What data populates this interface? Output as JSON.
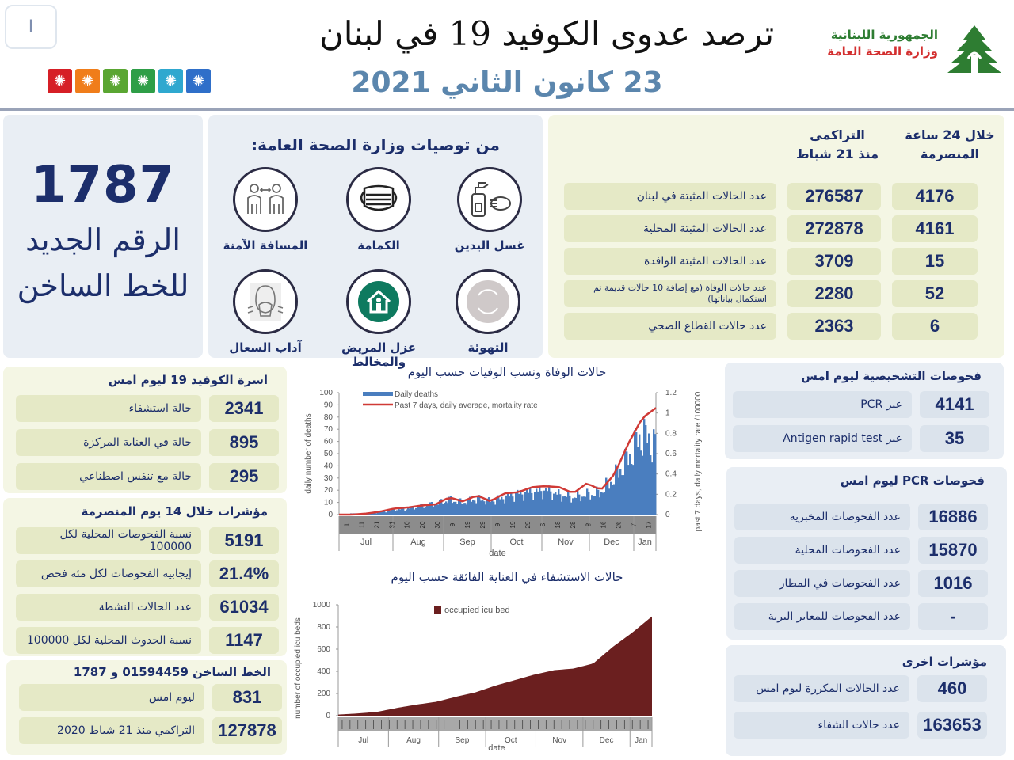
{
  "header": {
    "corner_button_label": "I",
    "title": "ترصد عدوى الكوفيد 19 في لبنان",
    "date": "23 كانون الثاني 2021",
    "ministry_line1": "الجمهورية اللبنانية",
    "ministry_line2": "وزارة الصحة العامة",
    "logo_icon": "cedar-tree-icon",
    "flag_icons": [
      {
        "name": "virus-icon",
        "color": "#d61f26"
      },
      {
        "name": "virus-icon",
        "color": "#f07d1a"
      },
      {
        "name": "virus-icon",
        "color": "#5aa632"
      },
      {
        "name": "virus-icon",
        "color": "#2e9e47"
      },
      {
        "name": "virus-icon",
        "color": "#2fa8cf"
      },
      {
        "name": "virus-icon",
        "color": "#2f6fc9"
      }
    ]
  },
  "hotline": {
    "number": "1787",
    "line1": "الرقم الجديد",
    "line2": "للخط الساخن"
  },
  "recommendations": {
    "title": "من توصيات وزارة الصحة العامة:",
    "items": [
      {
        "label": "غسل اليدين",
        "icon": "hand-sanitizer-icon"
      },
      {
        "label": "الكمامة",
        "icon": "face-mask-icon"
      },
      {
        "label": "المسافة الآمنة",
        "icon": "social-distance-icon"
      },
      {
        "label": "التهوئة",
        "icon": "ventilation-icon"
      },
      {
        "label": "عزل المريض والمخالط",
        "icon": "home-isolation-icon"
      },
      {
        "label": "آداب السعال",
        "icon": "cough-etiquette-icon"
      }
    ]
  },
  "stats": {
    "col_24h": "خلال 24 ساعة\nالمنصرمة",
    "col_24h_l1": "خلال 24 ساعة",
    "col_24h_l2": "المنصرمة",
    "col_cum_l1": "التراكمي",
    "col_cum_l2": "منذ 21 شباط",
    "rows": [
      {
        "h24": "4176",
        "cum": "276587",
        "label": "عدد الحالات المثبتة في لبنان"
      },
      {
        "h24": "4161",
        "cum": "272878",
        "label": "عدد الحالات المثبتة المحلية"
      },
      {
        "h24": "15",
        "cum": "3709",
        "label": "عدد الحالات المثبتة الوافدة"
      },
      {
        "h24": "52",
        "cum": "2280",
        "label": "عدد حالات الوفاة (مع إضافة 10 حالات قديمة تم استكمال بياناتها)"
      },
      {
        "h24": "6",
        "cum": "2363",
        "label": "عدد حالات القطاع الصحي"
      }
    ]
  },
  "beds": {
    "title": "اسرة الكوفيد 19 ليوم امس",
    "rows": [
      {
        "value": "2341",
        "label": "حالة استشفاء"
      },
      {
        "value": "895",
        "label": "حالة في العناية المركزة"
      },
      {
        "value": "295",
        "label": "حالة مع تنفس اصطناعي"
      }
    ]
  },
  "indicators14": {
    "title": "مؤشرات خلال 14 يوم المنصرمة",
    "rows": [
      {
        "value": "5191",
        "label": "نسبة الفحوصات  المحلية لكل 100000"
      },
      {
        "value": "21.4%",
        "label": "إيجابية الفحوصات لكل مئة فحص"
      },
      {
        "value": "61034",
        "label": "عدد الحالات النشطة"
      },
      {
        "value": "1147",
        "label": "نسبة الحدوث المحلية لكل 100000"
      }
    ]
  },
  "hotline_calls": {
    "title": "الخط الساخن 01594459 و 1787",
    "rows": [
      {
        "value": "831",
        "label": "ليوم امس"
      },
      {
        "value": "127878",
        "label": "التراكمي منذ 21 شباط 2020"
      }
    ]
  },
  "diagnostic": {
    "title": "فحوصات التشخيصية ليوم امس",
    "rows": [
      {
        "value": "4141",
        "label": "عبر PCR"
      },
      {
        "value": "35",
        "label": "عبر Antigen rapid test"
      }
    ]
  },
  "pcr": {
    "title": "فحوصات  PCR ليوم امس",
    "rows": [
      {
        "value": "16886",
        "label": "عدد الفحوصات المخبرية"
      },
      {
        "value": "15870",
        "label": "عدد الفحوصات المحلية"
      },
      {
        "value": "1016",
        "label": "عدد الفحوصات في المطار"
      },
      {
        "value": "-",
        "label": "عدد الفحوصات للمعابر البرية"
      }
    ]
  },
  "other": {
    "title": "مؤشرات اخرى",
    "rows": [
      {
        "value": "460",
        "label": "عدد الحالات المكررة  ليوم امس"
      },
      {
        "value": "163653",
        "label": "عدد حالات الشفاء"
      }
    ]
  },
  "chart_data": [
    {
      "type": "bar",
      "title": "حالات الوفاة ونسب الوفيات حسب اليوم",
      "xlabel": "date",
      "ylabel": "daily number of deaths",
      "y2label": "past 7 days, daily mortality rate /100000",
      "ylim": [
        0,
        100
      ],
      "y2lim": [
        0,
        1.2
      ],
      "yticks": [
        0,
        10,
        20,
        30,
        40,
        50,
        60,
        70,
        80,
        90,
        100
      ],
      "y2ticks": [
        0,
        0.2,
        0.4,
        0.6,
        0.8,
        1,
        1.2
      ],
      "month_labels": [
        "Jul",
        "Aug",
        "Sep",
        "Oct",
        "Nov",
        "Dec",
        "Jan"
      ],
      "day_ticks": [
        "1",
        "11",
        "21",
        "31",
        "10",
        "20",
        "30",
        "9",
        "19",
        "29",
        "9",
        "19",
        "29",
        "8",
        "18",
        "28",
        "8",
        "16",
        "26",
        "7",
        "17"
      ],
      "legend": [
        "Daily deaths",
        "Past 7 days, daily average, mortality rate"
      ],
      "series": [
        {
          "name": "Daily deaths",
          "kind": "bar",
          "color": "#4a7ebf",
          "x": [
            "Jul 1",
            "Jul 11",
            "Jul 21",
            "Jul 31",
            "Aug 10",
            "Aug 20",
            "Aug 30",
            "Sep 9",
            "Sep 19",
            "Sep 29",
            "Oct 9",
            "Oct 19",
            "Oct 29",
            "Nov 8",
            "Nov 18",
            "Nov 28",
            "Dec 8",
            "Dec 18",
            "Dec 28",
            "Jan 7",
            "Jan 12",
            "Jan 17",
            "Jan 20",
            "Jan 22"
          ],
          "values": [
            0,
            1,
            1,
            2,
            4,
            5,
            7,
            9,
            12,
            10,
            13,
            11,
            14,
            17,
            18,
            20,
            16,
            14,
            16,
            18,
            30,
            45,
            65,
            57
          ]
        },
        {
          "name": "Past 7 days, daily average, mortality rate",
          "kind": "line",
          "color": "#d03a36",
          "x": [
            "Jul 1",
            "Jul 11",
            "Jul 21",
            "Jul 31",
            "Aug 10",
            "Aug 20",
            "Aug 30",
            "Sep 9",
            "Sep 19",
            "Sep 29",
            "Oct 9",
            "Oct 19",
            "Oct 29",
            "Nov 8",
            "Nov 18",
            "Nov 28",
            "Dec 8",
            "Dec 18",
            "Dec 28",
            "Jan 7",
            "Jan 12",
            "Jan 17",
            "Jan 20",
            "Jan 22"
          ],
          "values": [
            0,
            0,
            0.01,
            0.03,
            0.06,
            0.07,
            0.09,
            0.1,
            0.17,
            0.13,
            0.19,
            0.13,
            0.21,
            0.22,
            0.27,
            0.28,
            0.27,
            0.21,
            0.31,
            0.24,
            0.4,
            0.7,
            0.95,
            1.05
          ]
        }
      ]
    },
    {
      "type": "area",
      "title": "حالات الاستشفاء في العناية الفائقة حسب اليوم",
      "xlabel": "date",
      "ylabel": "number of occupied icu beds",
      "ylim": [
        0,
        1000
      ],
      "yticks": [
        0,
        200,
        400,
        600,
        800,
        1000
      ],
      "month_labels": [
        "Jul",
        "Aug",
        "Sep",
        "Oct",
        "Nov",
        "Dec",
        "Jan"
      ],
      "legend": [
        "occupied icu bed"
      ],
      "series": [
        {
          "name": "occupied icu bed",
          "color": "#6b1f1f",
          "x": [
            "Jul 1",
            "Jul 15",
            "Jul 31",
            "Aug 15",
            "Aug 31",
            "Sep 15",
            "Sep 30",
            "Oct 15",
            "Oct 31",
            "Nov 15",
            "Nov 30",
            "Dec 15",
            "Dec 31",
            "Jan 7",
            "Jan 14",
            "Jan 18",
            "Jan 22"
          ],
          "values": [
            10,
            20,
            35,
            70,
            100,
            125,
            170,
            210,
            270,
            320,
            370,
            410,
            425,
            470,
            620,
            750,
            895
          ]
        }
      ]
    }
  ]
}
